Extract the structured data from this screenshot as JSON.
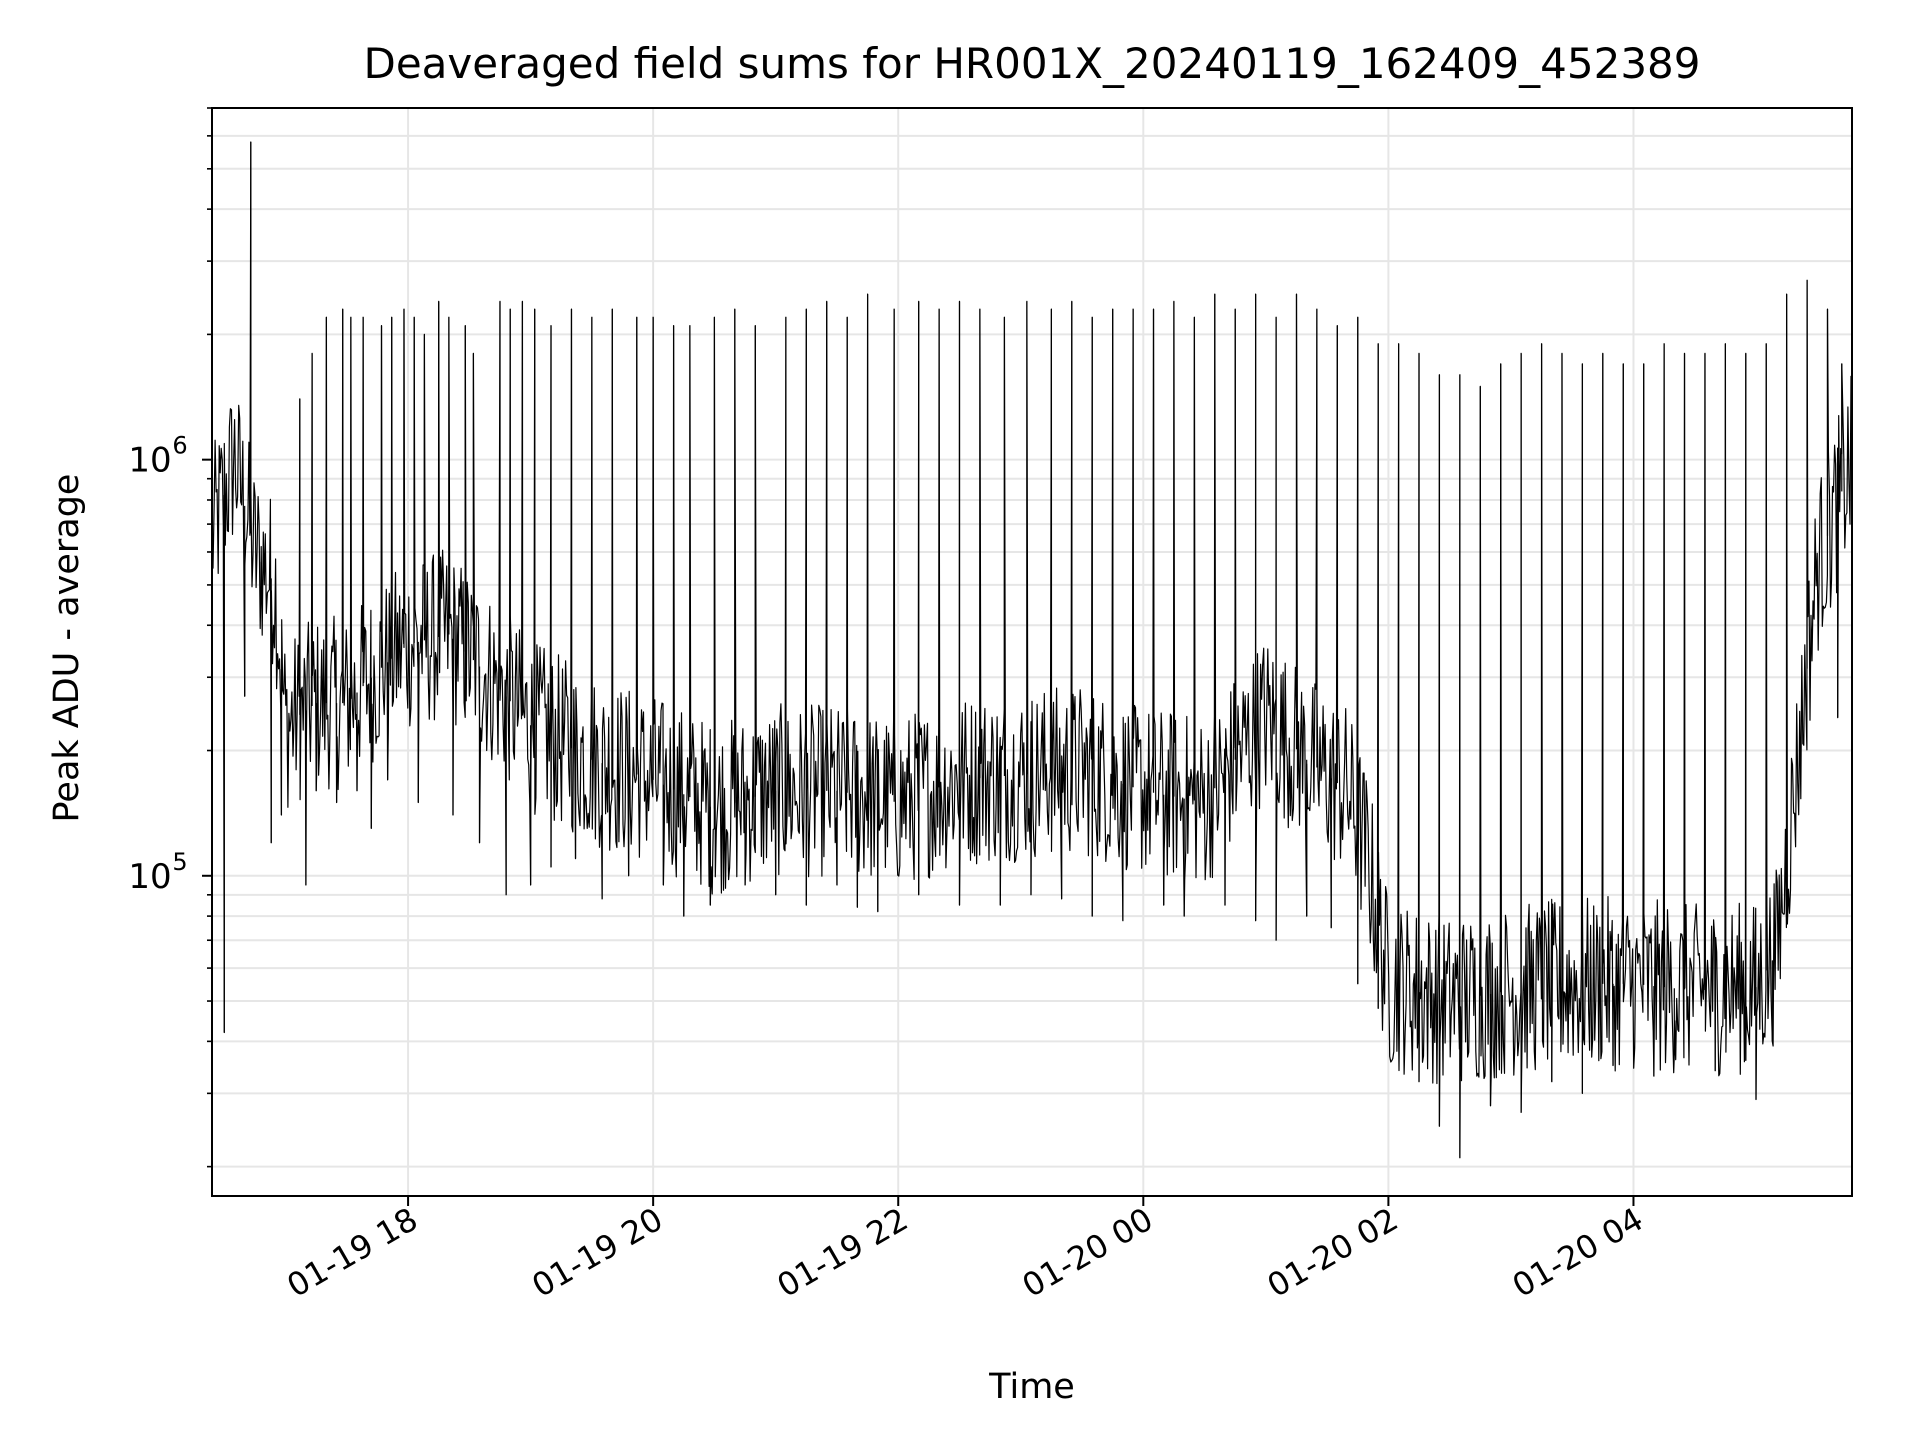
{
  "chart_data": {
    "type": "line",
    "title": "Deaveraged field sums for HR001X_20240119_162409_452389",
    "xlabel": "Time",
    "ylabel": "Peak ADU - average",
    "xscale": "time",
    "yscale": "log",
    "xlim": [
      "2024-01-19 16:24",
      "2024-01-20 05:47"
    ],
    "ylim": [
      17000,
      7000000
    ],
    "grid": true,
    "line_color": "#000000",
    "xticks": [
      {
        "value": "2024-01-19 18:00",
        "label": "01-19 18"
      },
      {
        "value": "2024-01-19 20:00",
        "label": "01-19 20"
      },
      {
        "value": "2024-01-19 22:00",
        "label": "01-19 22"
      },
      {
        "value": "2024-01-20 00:00",
        "label": "01-20 00"
      },
      {
        "value": "2024-01-20 02:00",
        "label": "01-20 02"
      },
      {
        "value": "2024-01-20 04:00",
        "label": "01-20 04"
      }
    ],
    "yticks": [
      {
        "value": 100000,
        "base": "10",
        "exp": "5"
      },
      {
        "value": 1000000,
        "base": "10",
        "exp": "6"
      }
    ],
    "series": [
      {
        "baseline": {
          "x": [
            "2024-01-19 16:24",
            "2024-01-19 16:35",
            "2024-01-19 16:45",
            "2024-01-19 16:55",
            "2024-01-19 17:00",
            "2024-01-19 17:15",
            "2024-01-19 17:30",
            "2024-01-19 17:45",
            "2024-01-19 18:00",
            "2024-01-19 18:20",
            "2024-01-19 18:40",
            "2024-01-19 19:00",
            "2024-01-19 19:30",
            "2024-01-19 20:00",
            "2024-01-19 20:30",
            "2024-01-19 21:00",
            "2024-01-19 21:30",
            "2024-01-19 22:00",
            "2024-01-19 22:30",
            "2024-01-19 23:00",
            "2024-01-19 23:30",
            "2024-01-20 00:00",
            "2024-01-20 00:30",
            "2024-01-20 00:45",
            "2024-01-20 01:00",
            "2024-01-20 01:20",
            "2024-01-20 01:40",
            "2024-01-20 01:50",
            "2024-01-20 02:00",
            "2024-01-20 02:30",
            "2024-01-20 03:00",
            "2024-01-20 03:30",
            "2024-01-20 04:00",
            "2024-01-20 04:30",
            "2024-01-20 05:00",
            "2024-01-20 05:10",
            "2024-01-20 05:20",
            "2024-01-20 05:30",
            "2024-01-20 05:47"
          ],
          "y": [
            650000,
            1000000,
            600000,
            500000,
            230000,
            260000,
            260000,
            310000,
            360000,
            380000,
            300000,
            230000,
            190000,
            170000,
            145000,
            160000,
            160000,
            150000,
            170000,
            175000,
            180000,
            160000,
            150000,
            190000,
            240000,
            190000,
            160000,
            110000,
            55000,
            50000,
            53000,
            55000,
            55000,
            53000,
            54000,
            65000,
            180000,
            550000,
            1000000
          ]
        },
        "spikes": {
          "x": [
            "2024-01-19 16:43",
            "2024-01-19 17:07",
            "2024-01-19 17:13",
            "2024-01-19 17:20",
            "2024-01-19 17:28",
            "2024-01-19 17:32",
            "2024-01-19 17:38",
            "2024-01-19 17:47",
            "2024-01-19 17:52",
            "2024-01-19 17:58",
            "2024-01-19 18:03",
            "2024-01-19 18:08",
            "2024-01-19 18:15",
            "2024-01-19 18:20",
            "2024-01-19 18:28",
            "2024-01-19 18:32",
            "2024-01-19 18:45",
            "2024-01-19 18:50",
            "2024-01-19 18:56",
            "2024-01-19 19:02",
            "2024-01-19 19:10",
            "2024-01-19 19:20",
            "2024-01-19 19:30",
            "2024-01-19 19:40",
            "2024-01-19 19:52",
            "2024-01-19 20:00",
            "2024-01-19 20:10",
            "2024-01-19 20:18",
            "2024-01-19 20:30",
            "2024-01-19 20:40",
            "2024-01-19 20:50",
            "2024-01-19 21:05",
            "2024-01-19 21:15",
            "2024-01-19 21:25",
            "2024-01-19 21:35",
            "2024-01-19 21:45",
            "2024-01-19 21:58",
            "2024-01-19 22:10",
            "2024-01-19 22:20",
            "2024-01-19 22:30",
            "2024-01-19 22:40",
            "2024-01-19 22:52",
            "2024-01-19 23:03",
            "2024-01-19 23:15",
            "2024-01-19 23:25",
            "2024-01-19 23:35",
            "2024-01-19 23:45",
            "2024-01-19 23:55",
            "2024-01-20 00:05",
            "2024-01-20 00:15",
            "2024-01-20 00:25",
            "2024-01-20 00:35",
            "2024-01-20 00:45",
            "2024-01-20 00:55",
            "2024-01-20 01:05",
            "2024-01-20 01:15",
            "2024-01-20 01:25",
            "2024-01-20 01:35",
            "2024-01-20 01:45",
            "2024-01-20 01:55",
            "2024-01-20 02:05",
            "2024-01-20 02:15",
            "2024-01-20 02:25",
            "2024-01-20 02:35",
            "2024-01-20 02:45",
            "2024-01-20 02:55",
            "2024-01-20 03:05",
            "2024-01-20 03:15",
            "2024-01-20 03:25",
            "2024-01-20 03:35",
            "2024-01-20 03:45",
            "2024-01-20 03:55",
            "2024-01-20 04:05",
            "2024-01-20 04:15",
            "2024-01-20 04:25",
            "2024-01-20 04:35",
            "2024-01-20 04:45",
            "2024-01-20 04:55",
            "2024-01-20 05:05",
            "2024-01-20 05:15",
            "2024-01-20 05:25",
            "2024-01-20 05:35",
            "2024-01-20 05:42"
          ],
          "y": [
            5800000,
            1400000,
            1800000,
            2200000,
            2300000,
            2200000,
            2200000,
            2100000,
            2200000,
            2300000,
            2200000,
            2000000,
            2400000,
            2200000,
            2100000,
            1800000,
            2400000,
            2300000,
            2400000,
            2300000,
            2100000,
            2300000,
            2200000,
            2300000,
            2200000,
            2200000,
            2100000,
            2100000,
            2200000,
            2300000,
            2100000,
            2200000,
            2300000,
            2400000,
            2200000,
            2500000,
            2300000,
            2400000,
            2300000,
            2400000,
            2300000,
            2200000,
            2400000,
            2300000,
            2400000,
            2200000,
            2300000,
            2300000,
            2300000,
            2400000,
            2200000,
            2500000,
            2300000,
            2500000,
            2200000,
            2500000,
            2300000,
            2100000,
            2200000,
            1900000,
            1900000,
            1800000,
            1600000,
            1600000,
            1500000,
            1700000,
            1800000,
            1900000,
            1800000,
            1700000,
            1800000,
            1700000,
            1700000,
            1900000,
            1800000,
            1800000,
            1900000,
            1800000,
            1900000,
            2500000,
            2700000,
            2300000,
            1700000
          ]
        },
        "dips": {
          "x": [
            "2024-01-19 16:30",
            "2024-01-19 16:40",
            "2024-01-19 16:48",
            "2024-01-19 16:53",
            "2024-01-19 16:58",
            "2024-01-19 17:10",
            "2024-01-19 17:15",
            "2024-01-19 17:25",
            "2024-01-19 17:35",
            "2024-01-19 17:42",
            "2024-01-19 17:50",
            "2024-01-19 18:05",
            "2024-01-19 18:22",
            "2024-01-19 18:35",
            "2024-01-19 18:48",
            "2024-01-19 19:00",
            "2024-01-19 19:10",
            "2024-01-19 19:22",
            "2024-01-19 19:35",
            "2024-01-19 19:48",
            "2024-01-19 20:05",
            "2024-01-19 20:15",
            "2024-01-19 20:28",
            "2024-01-19 20:45",
            "2024-01-19 21:00",
            "2024-01-19 21:15",
            "2024-01-19 21:30",
            "2024-01-19 21:40",
            "2024-01-19 21:50",
            "2024-01-19 22:10",
            "2024-01-19 22:30",
            "2024-01-19 22:50",
            "2024-01-19 23:05",
            "2024-01-19 23:20",
            "2024-01-19 23:35",
            "2024-01-19 23:50",
            "2024-01-20 00:10",
            "2024-01-20 00:20",
            "2024-01-20 00:40",
            "2024-01-20 00:55",
            "2024-01-20 01:05",
            "2024-01-20 01:20",
            "2024-01-20 01:32",
            "2024-01-20 01:45",
            "2024-01-20 01:55",
            "2024-01-20 02:05",
            "2024-01-20 02:15",
            "2024-01-20 02:25",
            "2024-01-20 02:35",
            "2024-01-20 02:50",
            "2024-01-20 03:05",
            "2024-01-20 03:20",
            "2024-01-20 03:35",
            "2024-01-20 03:50",
            "2024-01-20 04:10",
            "2024-01-20 04:20",
            "2024-01-20 04:40",
            "2024-01-20 04:55",
            "2024-01-20 05:00",
            "2024-01-20 05:08",
            "2024-01-20 05:40"
          ],
          "y": [
            42000,
            270000,
            500000,
            120000,
            140000,
            95000,
            160000,
            150000,
            160000,
            130000,
            170000,
            150000,
            140000,
            120000,
            90000,
            95000,
            105000,
            110000,
            88000,
            100000,
            95000,
            80000,
            85000,
            95000,
            90000,
            85000,
            95000,
            84000,
            82000,
            90000,
            85000,
            85000,
            90000,
            88000,
            80000,
            78000,
            85000,
            80000,
            85000,
            78000,
            70000,
            80000,
            75000,
            55000,
            48000,
            42000,
            32000,
            25000,
            21000,
            28000,
            27000,
            32000,
            30000,
            35000,
            33000,
            37000,
            34000,
            36000,
            29000,
            40000,
            240000
          ]
        }
      }
    ]
  }
}
